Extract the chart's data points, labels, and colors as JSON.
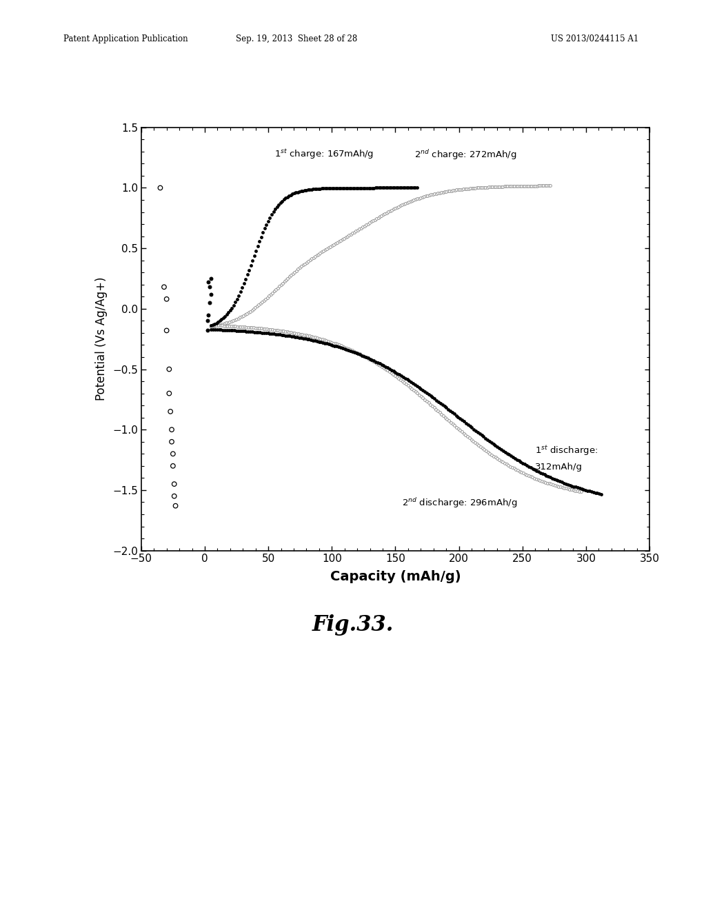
{
  "title": "Fig.33.",
  "xlabel": "Capacity (mAh/g)",
  "ylabel": "Potential (Vs Ag/Ag+)",
  "xlim": [
    -50,
    350
  ],
  "ylim": [
    -2.0,
    1.5
  ],
  "xticks": [
    -50,
    0,
    50,
    100,
    150,
    200,
    250,
    300,
    350
  ],
  "yticks": [
    -2.0,
    -1.5,
    -1.0,
    -0.5,
    0.0,
    0.5,
    1.0,
    1.5
  ],
  "header_left": "Patent Application Publication",
  "header_mid": "Sep. 19, 2013  Sheet 28 of 28",
  "header_right": "US 2013/0244115 A1",
  "background_color": "#ffffff",
  "fig_label": "Fig.33."
}
